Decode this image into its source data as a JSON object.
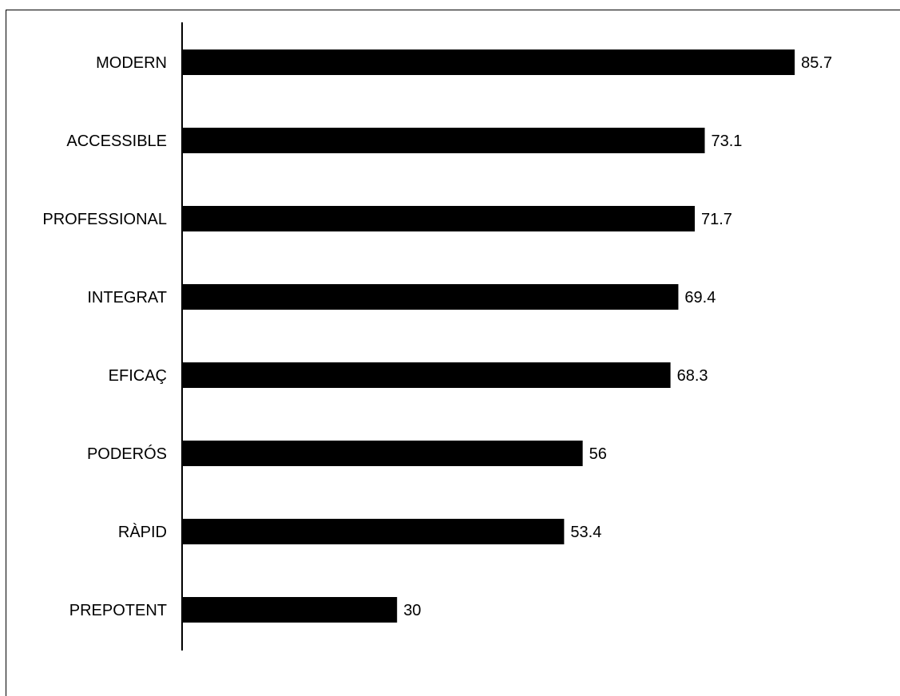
{
  "chart_data": {
    "type": "bar",
    "orientation": "horizontal",
    "categories": [
      "MODERN",
      "ACCESSIBLE",
      "PROFESSIONAL",
      "INTEGRAT",
      "EFICAÇ",
      "PODERÓS",
      "RÀPID",
      "PREPOTENT"
    ],
    "values": [
      85.7,
      73.1,
      71.7,
      69.4,
      68.3,
      56,
      53.4,
      30
    ],
    "value_labels": [
      "85.7",
      "73.1",
      "71.7",
      "69.4",
      "68.3",
      "56",
      "53.4",
      "30"
    ],
    "xlim": [
      0,
      100
    ],
    "grid": false,
    "legend": "none",
    "bar_color": "#000000"
  }
}
